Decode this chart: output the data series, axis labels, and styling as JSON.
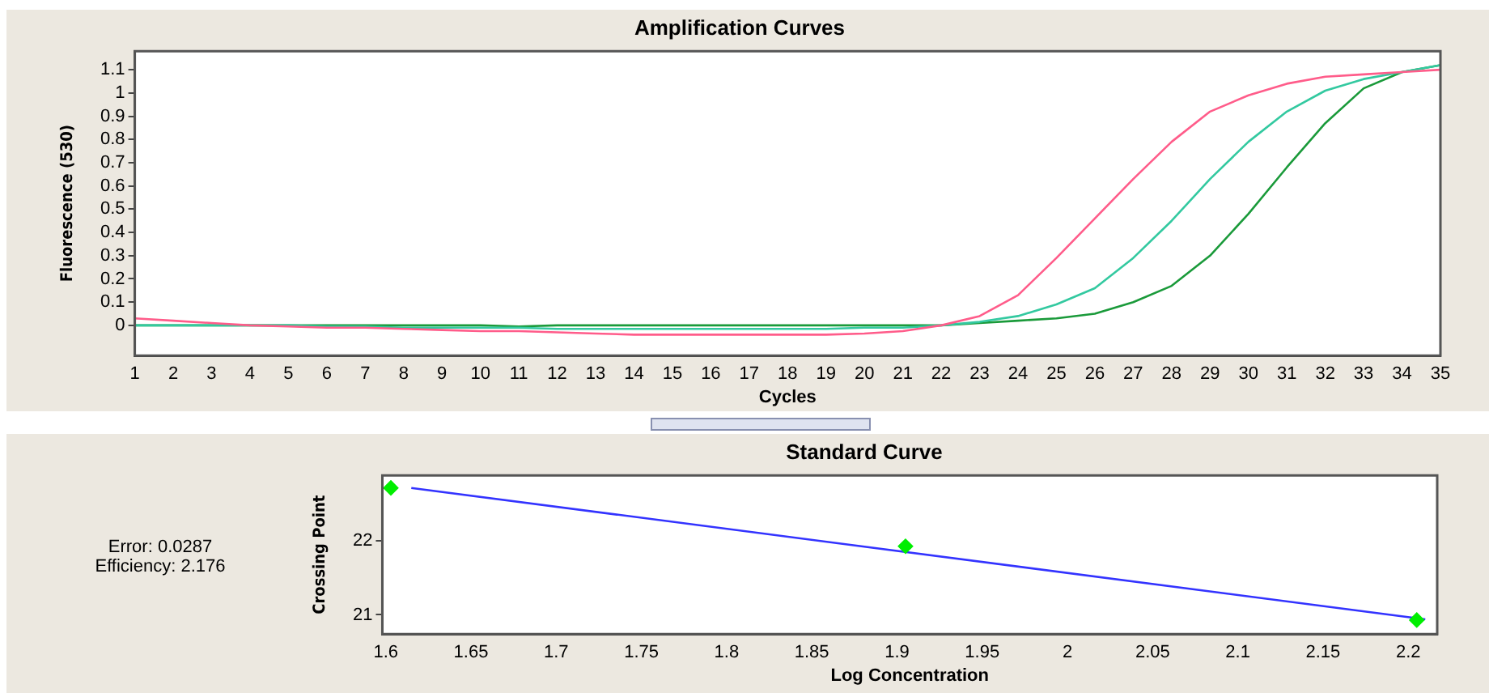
{
  "chart_data": [
    {
      "type": "line",
      "title": "Amplification Curves",
      "xlabel": "Cycles",
      "ylabel": "Fluorescence (530)",
      "x": [
        1,
        2,
        3,
        4,
        5,
        6,
        7,
        8,
        9,
        10,
        11,
        12,
        13,
        14,
        15,
        16,
        17,
        18,
        19,
        20,
        21,
        22,
        23,
        24,
        25,
        26,
        27,
        28,
        29,
        30,
        31,
        32,
        33,
        34,
        35
      ],
      "series": [
        {
          "color": "#ff5c8a",
          "values": [
            0.03,
            0.02,
            0.01,
            0.0,
            -0.005,
            -0.01,
            -0.01,
            -0.015,
            -0.02,
            -0.025,
            -0.025,
            -0.03,
            -0.035,
            -0.04,
            -0.04,
            -0.04,
            -0.04,
            -0.04,
            -0.04,
            -0.035,
            -0.025,
            0.0,
            0.04,
            0.13,
            0.29,
            0.46,
            0.63,
            0.79,
            0.92,
            0.99,
            1.04,
            1.07,
            1.08,
            1.09,
            1.1
          ]
        },
        {
          "color": "#33c9a0",
          "values": [
            0.0,
            0.0,
            0.0,
            0.0,
            0.0,
            -0.005,
            -0.005,
            -0.01,
            -0.01,
            -0.01,
            -0.01,
            -0.015,
            -0.015,
            -0.015,
            -0.015,
            -0.015,
            -0.015,
            -0.015,
            -0.015,
            -0.01,
            -0.01,
            0.0,
            0.015,
            0.04,
            0.09,
            0.16,
            0.29,
            0.45,
            0.63,
            0.79,
            0.92,
            1.01,
            1.06,
            1.09,
            1.12
          ]
        },
        {
          "color": "#1a9a3a",
          "values": [
            0.0,
            0.0,
            0.0,
            0.0,
            0.0,
            0.0,
            0.0,
            0.0,
            0.0,
            0.0,
            -0.005,
            0.0,
            0.0,
            0.0,
            0.0,
            0.0,
            0.0,
            0.0,
            0.0,
            0.0,
            0.0,
            0.0,
            0.01,
            0.02,
            0.03,
            0.05,
            0.1,
            0.17,
            0.3,
            0.48,
            0.68,
            0.87,
            1.02,
            1.09,
            1.12
          ]
        }
      ],
      "marker": "none",
      "legend": false,
      "xlim": [
        1,
        35
      ],
      "xticks": [
        1,
        2,
        3,
        4,
        5,
        6,
        7,
        8,
        9,
        10,
        11,
        12,
        13,
        14,
        15,
        16,
        17,
        18,
        19,
        20,
        21,
        22,
        23,
        24,
        25,
        26,
        27,
        28,
        29,
        30,
        31,
        32,
        33,
        34,
        35
      ],
      "ylim": [
        -0.13,
        1.18
      ],
      "yticks": [
        0,
        0.1,
        0.2,
        0.3,
        0.4,
        0.5,
        0.6,
        0.7,
        0.8,
        0.9,
        1,
        1.1
      ]
    },
    {
      "type": "scatter",
      "title": "Standard Curve",
      "xlabel": "Log Concentration",
      "ylabel": "Crossing Point",
      "annotations": [
        "Error: 0.0287",
        "Efficiency: 2.176"
      ],
      "series": [
        {
          "color": "#00ee00",
          "x": [
            1.603,
            1.905,
            2.205
          ],
          "values": [
            22.72,
            21.93,
            20.93
          ]
        },
        {
          "type": "line",
          "marker": "none",
          "color": "#3333ff",
          "x": [
            1.615,
            2.21
          ],
          "values": [
            22.72,
            20.94
          ]
        }
      ],
      "marker": "diamond",
      "legend": false,
      "xlim": [
        1.598,
        2.217
      ],
      "xticks": [
        1.6,
        1.65,
        1.7,
        1.75,
        1.8,
        1.85,
        1.9,
        1.95,
        2,
        2.05,
        2.1,
        2.15,
        2.2
      ],
      "ylim": [
        20.74,
        22.89
      ],
      "yticks": [
        21,
        22
      ]
    }
  ]
}
